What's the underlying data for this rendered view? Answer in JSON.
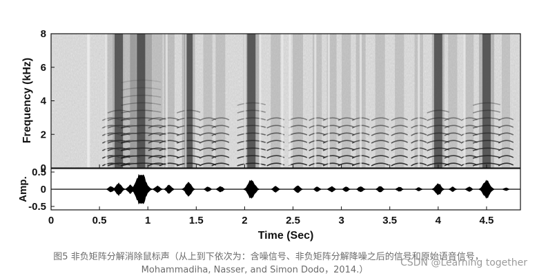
{
  "chart_data": [
    {
      "type": "heatmap",
      "title": "",
      "xlabel": "",
      "ylabel": "Frequency (kHz)",
      "xlim": [
        0,
        4.85
      ],
      "ylim": [
        0,
        8
      ],
      "yticks": [
        "0",
        "2",
        "4",
        "6",
        "8"
      ],
      "colormap": "grayscale (dark = high energy)",
      "grid": false
    },
    {
      "type": "line",
      "title": "",
      "xlabel": "Time (Sec)",
      "ylabel": "Amp.",
      "xlim": [
        0,
        4.85
      ],
      "ylim": [
        -0.6,
        0.6
      ],
      "xticks": [
        "0",
        "0.5",
        "1",
        "1.5",
        "2",
        "2.5",
        "3",
        "3.5",
        "4",
        "4.5"
      ],
      "yticks": [
        "0.5",
        "0",
        "-0.5"
      ],
      "envelope_peaks": [
        {
          "t": 0.62,
          "amp": 0.1
        },
        {
          "t": 0.7,
          "amp": 0.2
        },
        {
          "t": 0.82,
          "amp": 0.14
        },
        {
          "t": 0.93,
          "amp": 0.55
        },
        {
          "t": 1.1,
          "amp": 0.12
        },
        {
          "t": 1.22,
          "amp": 0.14
        },
        {
          "t": 1.42,
          "amp": 0.22
        },
        {
          "t": 1.62,
          "amp": 0.08
        },
        {
          "t": 1.75,
          "amp": 0.1
        },
        {
          "t": 2.07,
          "amp": 0.32
        },
        {
          "t": 2.32,
          "amp": 0.1
        },
        {
          "t": 2.55,
          "amp": 0.12
        },
        {
          "t": 2.75,
          "amp": 0.08
        },
        {
          "t": 2.9,
          "amp": 0.1
        },
        {
          "t": 3.05,
          "amp": 0.08
        },
        {
          "t": 3.2,
          "amp": 0.1
        },
        {
          "t": 3.4,
          "amp": 0.1
        },
        {
          "t": 3.6,
          "amp": 0.08
        },
        {
          "t": 3.8,
          "amp": 0.06
        },
        {
          "t": 4.0,
          "amp": 0.2
        },
        {
          "t": 4.15,
          "amp": 0.08
        },
        {
          "t": 4.32,
          "amp": 0.08
        },
        {
          "t": 4.5,
          "amp": 0.3
        },
        {
          "t": 4.7,
          "amp": 0.05
        }
      ]
    }
  ],
  "caption": {
    "line1": "图5 非负矩阵分解消除鼠标声（从上到下依次为：含噪信号、非负矩阵分解降噪之后的信号和原始语音信号，",
    "line2": "Mohammadiha, Nasser, and Simon Dodo，2014.）"
  },
  "watermark": "CSDN @Learning together"
}
